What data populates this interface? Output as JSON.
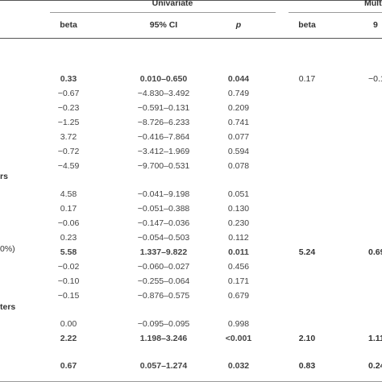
{
  "header": {
    "group_univariate": "Univariate",
    "group_multivariate": "Mult",
    "col_beta": "beta",
    "col_ci": "95% CI",
    "col_p": "p",
    "col_beta_multi": "beta",
    "col_ci_multi": "9"
  },
  "sections": {
    "sec_a": "rs",
    "sec_b": "ters"
  },
  "row_labels": {
    "r_pct": "0%)"
  },
  "rows": [
    {
      "beta": "0.33",
      "ci": "0.010–0.650",
      "p": "0.044",
      "mbeta": "0.17",
      "mci": "−0.1",
      "bold": true,
      "mbold": false
    },
    {
      "beta": "−0.67",
      "ci": "−4.830–3.492",
      "p": "0.749",
      "mbeta": "",
      "mci": "",
      "bold": false,
      "mbold": false
    },
    {
      "beta": "−0.23",
      "ci": "−0.591–0.131",
      "p": "0.209",
      "mbeta": "",
      "mci": "",
      "bold": false,
      "mbold": false
    },
    {
      "beta": "−1.25",
      "ci": "−8.726–6.233",
      "p": "0.741",
      "mbeta": "",
      "mci": "",
      "bold": false,
      "mbold": false
    },
    {
      "beta": "3.72",
      "ci": "−0.416–7.864",
      "p": "0.077",
      "mbeta": "",
      "mci": "",
      "bold": false,
      "mbold": false
    },
    {
      "beta": "−0.72",
      "ci": "−3.412–1.969",
      "p": "0.594",
      "mbeta": "",
      "mci": "",
      "bold": false,
      "mbold": false
    },
    {
      "beta": "−4.59",
      "ci": "−9.700–0.531",
      "p": "0.078",
      "mbeta": "",
      "mci": "",
      "bold": false,
      "mbold": false
    },
    {
      "beta": "4.58",
      "ci": "−0.041–9.198",
      "p": "0.051",
      "mbeta": "",
      "mci": "",
      "bold": false,
      "mbold": false
    },
    {
      "beta": "0.17",
      "ci": "−0.051–0.388",
      "p": "0.130",
      "mbeta": "",
      "mci": "",
      "bold": false,
      "mbold": false
    },
    {
      "beta": "−0.06",
      "ci": "−0.147–0.036",
      "p": "0.230",
      "mbeta": "",
      "mci": "",
      "bold": false,
      "mbold": false
    },
    {
      "beta": "0.23",
      "ci": "−0.054–0.503",
      "p": "0.112",
      "mbeta": "",
      "mci": "",
      "bold": false,
      "mbold": false
    },
    {
      "beta": "5.58",
      "ci": "1.337–9.822",
      "p": "0.011",
      "mbeta": "5.24",
      "mci": "0.69",
      "bold": true,
      "mbold": true
    },
    {
      "beta": "−0.02",
      "ci": "−0.060–0.027",
      "p": "0.456",
      "mbeta": "",
      "mci": "",
      "bold": false,
      "mbold": false
    },
    {
      "beta": "−0.10",
      "ci": "−0.255–0.064",
      "p": "0.171",
      "mbeta": "",
      "mci": "",
      "bold": false,
      "mbold": false
    },
    {
      "beta": "−0.15",
      "ci": "−0.876–0.575",
      "p": "0.679",
      "mbeta": "",
      "mci": "",
      "bold": false,
      "mbold": false
    },
    {
      "beta": "0.00",
      "ci": "−0.095–0.095",
      "p": "0.998",
      "mbeta": "",
      "mci": "",
      "bold": false,
      "mbold": false
    },
    {
      "beta": "2.22",
      "ci": "1.198–3.246",
      "p": "<0.001",
      "mbeta": "2.10",
      "mci": "1.11",
      "bold": true,
      "mbold": true
    },
    {
      "beta": "0.67",
      "ci": "0.057–1.274",
      "p": "0.032",
      "mbeta": "0.83",
      "mci": "0.24",
      "bold": true,
      "mbold": true
    }
  ]
}
